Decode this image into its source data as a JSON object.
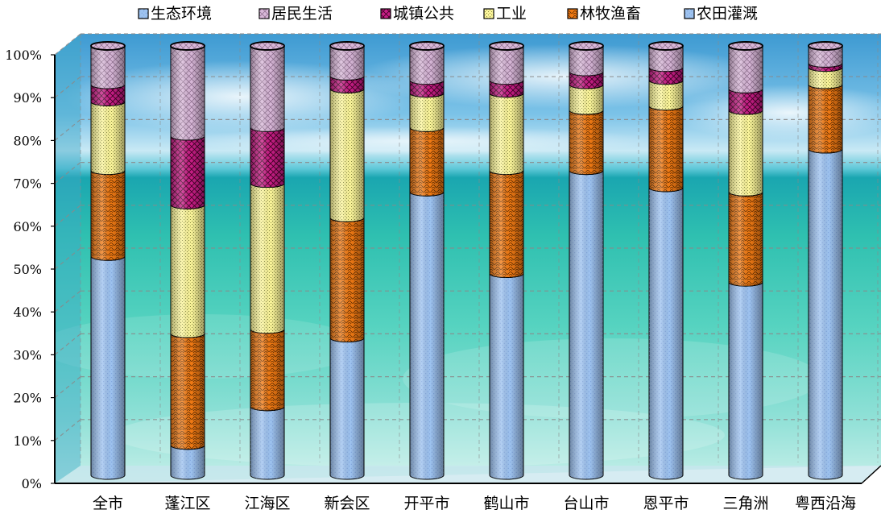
{
  "chart_data": {
    "type": "bar",
    "stacked": true,
    "percent": true,
    "categories": [
      "全市",
      "蓬江区",
      "江海区",
      "新会区",
      "开平市",
      "鹤山市",
      "台山市",
      "恩平市",
      "三角洲",
      "粤西沿海"
    ],
    "series": [
      {
        "name": "农田灌溉",
        "color": "#9ec3f0",
        "values": [
          51,
          7,
          16,
          32,
          66,
          47,
          71,
          67,
          45,
          76
        ]
      },
      {
        "name": "林牧渔畜",
        "color": "#f07a14",
        "values": [
          20,
          26,
          18,
          28,
          15,
          24,
          14,
          19,
          21,
          15
        ]
      },
      {
        "name": "工业",
        "color": "#fbf59b",
        "values": [
          16,
          30,
          34,
          30,
          8,
          18,
          6,
          6,
          19,
          4
        ]
      },
      {
        "name": "城镇公共",
        "color": "#c81d86",
        "values": [
          4,
          16,
          13,
          3,
          3,
          3,
          3,
          3,
          5,
          1
        ]
      },
      {
        "name": "居民生活",
        "color": "#d8b8d8",
        "values": [
          9,
          21,
          19,
          7,
          8,
          8,
          6,
          5,
          10,
          4
        ]
      },
      {
        "name": "生态环境",
        "color": "#9ec3f0",
        "values": [
          0,
          0,
          0,
          0,
          0,
          0,
          0,
          0,
          0,
          0
        ]
      }
    ],
    "legend_order": [
      "生态环境",
      "居民生活",
      "城镇公共",
      "工业",
      "林牧渔畜",
      "农田灌溉"
    ],
    "ylim": [
      0,
      100
    ],
    "yticks": [
      "0%",
      "10%",
      "20%",
      "30%",
      "40%",
      "50%",
      "60%",
      "70%",
      "80%",
      "90%",
      "100%"
    ],
    "legend_position": "top",
    "grid": true
  }
}
